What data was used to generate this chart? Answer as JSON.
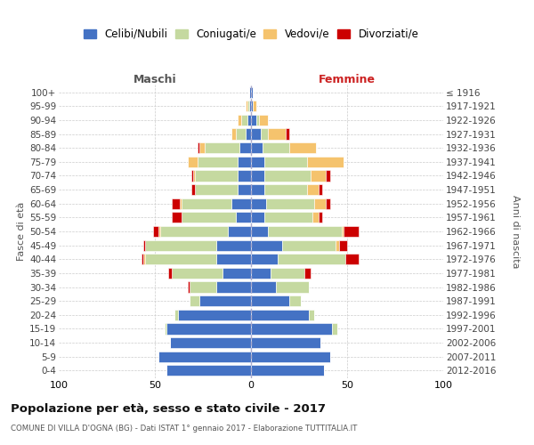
{
  "age_groups": [
    "0-4",
    "5-9",
    "10-14",
    "15-19",
    "20-24",
    "25-29",
    "30-34",
    "35-39",
    "40-44",
    "45-49",
    "50-54",
    "55-59",
    "60-64",
    "65-69",
    "70-74",
    "75-79",
    "80-84",
    "85-89",
    "90-94",
    "95-99",
    "100+"
  ],
  "birth_years": [
    "2012-2016",
    "2007-2011",
    "2002-2006",
    "1997-2001",
    "1992-1996",
    "1987-1991",
    "1982-1986",
    "1977-1981",
    "1972-1976",
    "1967-1971",
    "1962-1966",
    "1957-1961",
    "1952-1956",
    "1947-1951",
    "1942-1946",
    "1937-1941",
    "1932-1936",
    "1927-1931",
    "1922-1926",
    "1917-1921",
    "≤ 1916"
  ],
  "male_celibi": [
    44,
    48,
    42,
    44,
    38,
    27,
    18,
    15,
    18,
    18,
    12,
    8,
    10,
    7,
    7,
    7,
    6,
    3,
    2,
    1,
    1
  ],
  "male_coniugati": [
    0,
    0,
    0,
    1,
    2,
    5,
    14,
    26,
    37,
    37,
    35,
    28,
    26,
    22,
    22,
    21,
    18,
    5,
    3,
    1,
    0
  ],
  "male_vedovi": [
    0,
    0,
    0,
    0,
    0,
    0,
    0,
    0,
    1,
    0,
    1,
    0,
    1,
    0,
    1,
    5,
    3,
    2,
    2,
    1,
    0
  ],
  "male_divorziati": [
    0,
    0,
    0,
    0,
    0,
    0,
    1,
    2,
    1,
    1,
    3,
    5,
    4,
    2,
    1,
    0,
    1,
    0,
    0,
    0,
    0
  ],
  "female_celibi": [
    38,
    41,
    36,
    42,
    30,
    20,
    13,
    10,
    14,
    16,
    9,
    7,
    8,
    7,
    7,
    7,
    6,
    5,
    3,
    1,
    1
  ],
  "female_coniugati": [
    0,
    0,
    0,
    3,
    3,
    6,
    17,
    18,
    35,
    28,
    38,
    25,
    25,
    22,
    24,
    22,
    14,
    4,
    1,
    0,
    0
  ],
  "female_vedovi": [
    0,
    0,
    0,
    0,
    0,
    0,
    0,
    0,
    0,
    2,
    1,
    3,
    6,
    6,
    8,
    19,
    14,
    9,
    5,
    2,
    0
  ],
  "female_divorziati": [
    0,
    0,
    0,
    0,
    0,
    0,
    0,
    3,
    7,
    4,
    8,
    2,
    2,
    2,
    2,
    0,
    0,
    2,
    0,
    0,
    0
  ],
  "color_celibi": "#4472C4",
  "color_coniugati": "#C5D9A0",
  "color_vedovi": "#F5C36D",
  "color_divorziati": "#CC0000",
  "title": "Popolazione per età, sesso e stato civile - 2017",
  "subtitle": "COMUNE DI VILLA D'OGNA (BG) - Dati ISTAT 1° gennaio 2017 - Elaborazione TUTTITALIA.IT",
  "xlabel_left": "Maschi",
  "xlabel_right": "Femmine",
  "ylabel_left": "Fasce di età",
  "ylabel_right": "Anni di nascita",
  "xlim": 100
}
